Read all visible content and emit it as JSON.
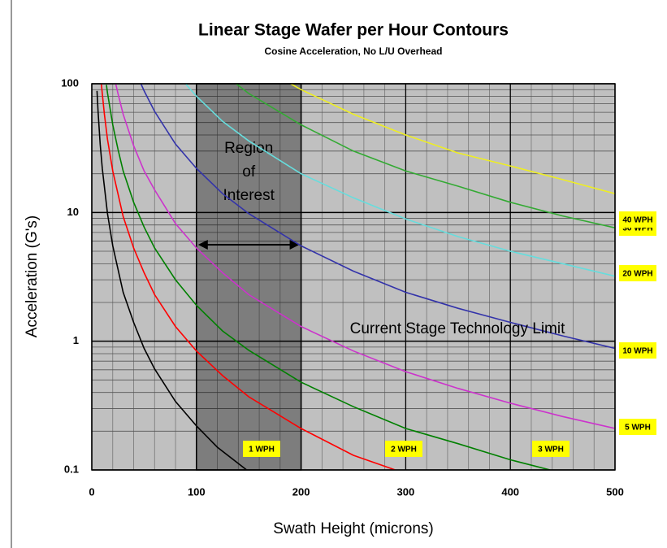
{
  "chart_data": {
    "type": "line",
    "title": "Linear Stage Wafer per Hour Contours",
    "subtitle": "Cosine Acceleration, No L/U Overhead",
    "x_label": "Swath Height (microns)",
    "y_label": "Acceleration (G's)",
    "xlim": [
      0,
      500
    ],
    "ylim": [
      0.1,
      100
    ],
    "y_log": true,
    "grid": true,
    "xticks": [
      0,
      100,
      200,
      300,
      400,
      500
    ],
    "yticks": [
      0.1,
      1,
      10,
      100
    ],
    "minor_xticks": [
      20,
      40,
      60,
      80,
      120,
      140,
      160,
      180,
      220,
      240,
      260,
      280,
      320,
      340,
      360,
      380,
      420,
      440,
      460,
      480
    ],
    "minor_yticks": [
      0.2,
      0.3,
      0.4,
      0.5,
      0.6,
      0.7,
      0.8,
      0.9,
      2,
      3,
      4,
      5,
      6,
      7,
      8,
      9,
      20,
      30,
      40,
      50,
      60,
      70,
      80,
      90
    ],
    "region": [
      100,
      200
    ],
    "region_label": [
      "Region",
      "of",
      "Interest"
    ],
    "annotation": "Current Stage Technology Limit",
    "series": [
      {
        "name": "1 WPH",
        "color": "#000000",
        "x": [
          5,
          6,
          8,
          10,
          15,
          20,
          30,
          40,
          50,
          60,
          80,
          100,
          120,
          148
        ],
        "values": [
          88,
          61,
          34,
          22,
          9.8,
          5.5,
          2.4,
          1.4,
          0.88,
          0.61,
          0.34,
          0.22,
          0.15,
          0.1
        ]
      },
      {
        "name": "2 WPH",
        "color": "#ff0000",
        "x": [
          9.2,
          10,
          12,
          15,
          20,
          30,
          40,
          50,
          60,
          80,
          100,
          125,
          150,
          200,
          250,
          290
        ],
        "values": [
          99,
          84,
          58,
          37,
          21,
          9.3,
          5.3,
          3.4,
          2.3,
          1.3,
          0.84,
          0.54,
          0.37,
          0.21,
          0.13,
          0.1
        ]
      },
      {
        "name": "3 WPH",
        "color": "#008000",
        "x": [
          14,
          15,
          20,
          25,
          30,
          40,
          50,
          60,
          80,
          100,
          125,
          150,
          200,
          250,
          300,
          350,
          400,
          438
        ],
        "values": [
          98,
          85,
          48,
          31,
          21,
          12,
          7.7,
          5.3,
          3,
          1.9,
          1.2,
          0.85,
          0.48,
          0.31,
          0.21,
          0.16,
          0.12,
          0.1
        ]
      },
      {
        "name": "5 WPH",
        "color": "#cc33cc",
        "x": [
          23,
          25,
          30,
          40,
          50,
          60,
          80,
          100,
          125,
          150,
          200,
          250,
          300,
          350,
          400,
          450,
          500
        ],
        "values": [
          99,
          84,
          58,
          33,
          21,
          15,
          8.2,
          5.3,
          3.4,
          2.3,
          1.3,
          0.84,
          0.58,
          0.43,
          0.33,
          0.26,
          0.21
        ]
      },
      {
        "name": "10 WPH",
        "color": "#3333aa",
        "x": [
          47,
          50,
          60,
          80,
          100,
          125,
          150,
          200,
          250,
          300,
          350,
          400,
          450,
          500
        ],
        "values": [
          100,
          88,
          61,
          34,
          22,
          14,
          9.8,
          5.5,
          3.5,
          2.4,
          1.8,
          1.4,
          1.1,
          0.88
        ]
      },
      {
        "name": "20 WPH",
        "color": "#66dddd",
        "x": [
          90,
          100,
          125,
          150,
          200,
          250,
          300,
          350,
          400,
          450,
          500
        ],
        "values": [
          99,
          80,
          51,
          36,
          20,
          13,
          8.9,
          6.5,
          5,
          4,
          3.2
        ]
      },
      {
        "name": "30 WPH",
        "color": "#33aa33",
        "x": [
          138,
          150,
          200,
          250,
          300,
          350,
          400,
          450,
          500
        ],
        "values": [
          100,
          84,
          48,
          30,
          21,
          16,
          12,
          9.4,
          7.6
        ]
      },
      {
        "name": "40 WPH",
        "color": "#eeee22",
        "x": [
          190,
          200,
          250,
          300,
          350,
          400,
          450,
          500
        ],
        "values": [
          100,
          90,
          58,
          40,
          29,
          23,
          18,
          14
        ]
      }
    ]
  }
}
